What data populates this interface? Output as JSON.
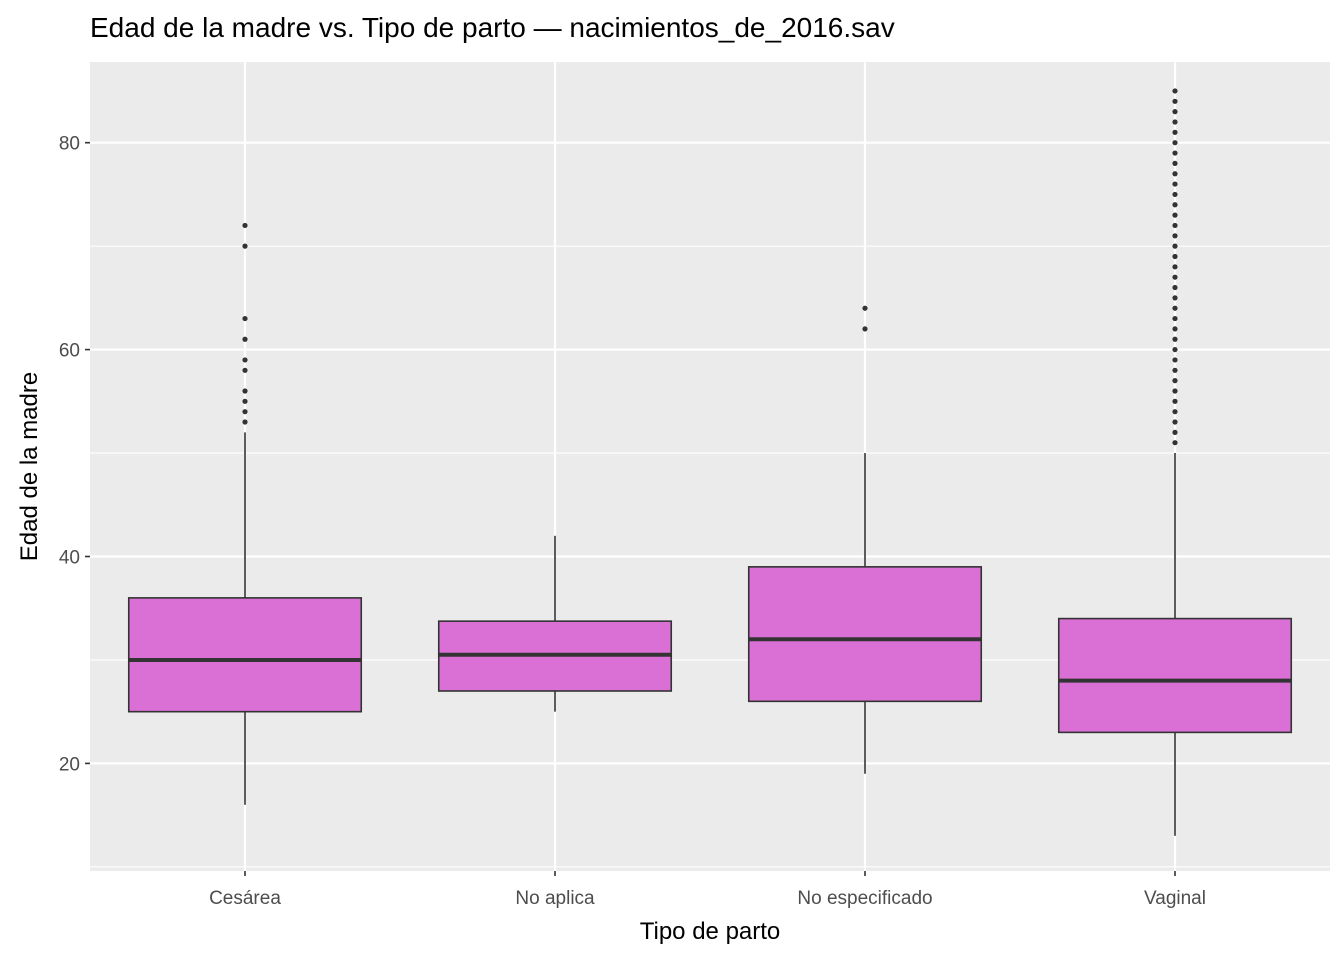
{
  "chart_data": {
    "type": "boxplot",
    "title": "Edad de la madre vs. Tipo de parto — nacimientos_de_2016.sav",
    "xlabel": "Tipo de parto",
    "ylabel": "Edad de la madre",
    "categories": [
      "Cesárea",
      "No aplica",
      "No especificado",
      "Vaginal"
    ],
    "ylim": [
      9.6,
      87.8
    ],
    "y_ticks": [
      20,
      40,
      60,
      80
    ],
    "grid": true,
    "fill_color": "#da70d6",
    "outline_color": "#333333",
    "panel_color": "#ebebeb",
    "boxes": [
      {
        "category": "Cesárea",
        "whisker_low": 16,
        "q1": 25,
        "median": 30,
        "q3": 36,
        "whisker_high": 52,
        "outliers": [
          53,
          54,
          55,
          56,
          58,
          59,
          61,
          63,
          70,
          72
        ]
      },
      {
        "category": "No aplica",
        "whisker_low": 25,
        "q1": 27,
        "median": 30.5,
        "q3": 33.75,
        "whisker_high": 42,
        "outliers": []
      },
      {
        "category": "No especificado",
        "whisker_low": 19,
        "q1": 26,
        "median": 32,
        "q3": 39,
        "whisker_high": 50,
        "outliers": [
          62,
          64
        ]
      },
      {
        "category": "Vaginal",
        "whisker_low": 13,
        "q1": 23,
        "median": 28,
        "q3": 34,
        "whisker_high": 50,
        "outliers": [
          51,
          52,
          53,
          54,
          55,
          56,
          57,
          58,
          59,
          60,
          61,
          62,
          63,
          64,
          65,
          66,
          67,
          68,
          69,
          70,
          71,
          72,
          73,
          74,
          75,
          76,
          77,
          78,
          79,
          80,
          81,
          82,
          83,
          84,
          85
        ]
      }
    ]
  }
}
